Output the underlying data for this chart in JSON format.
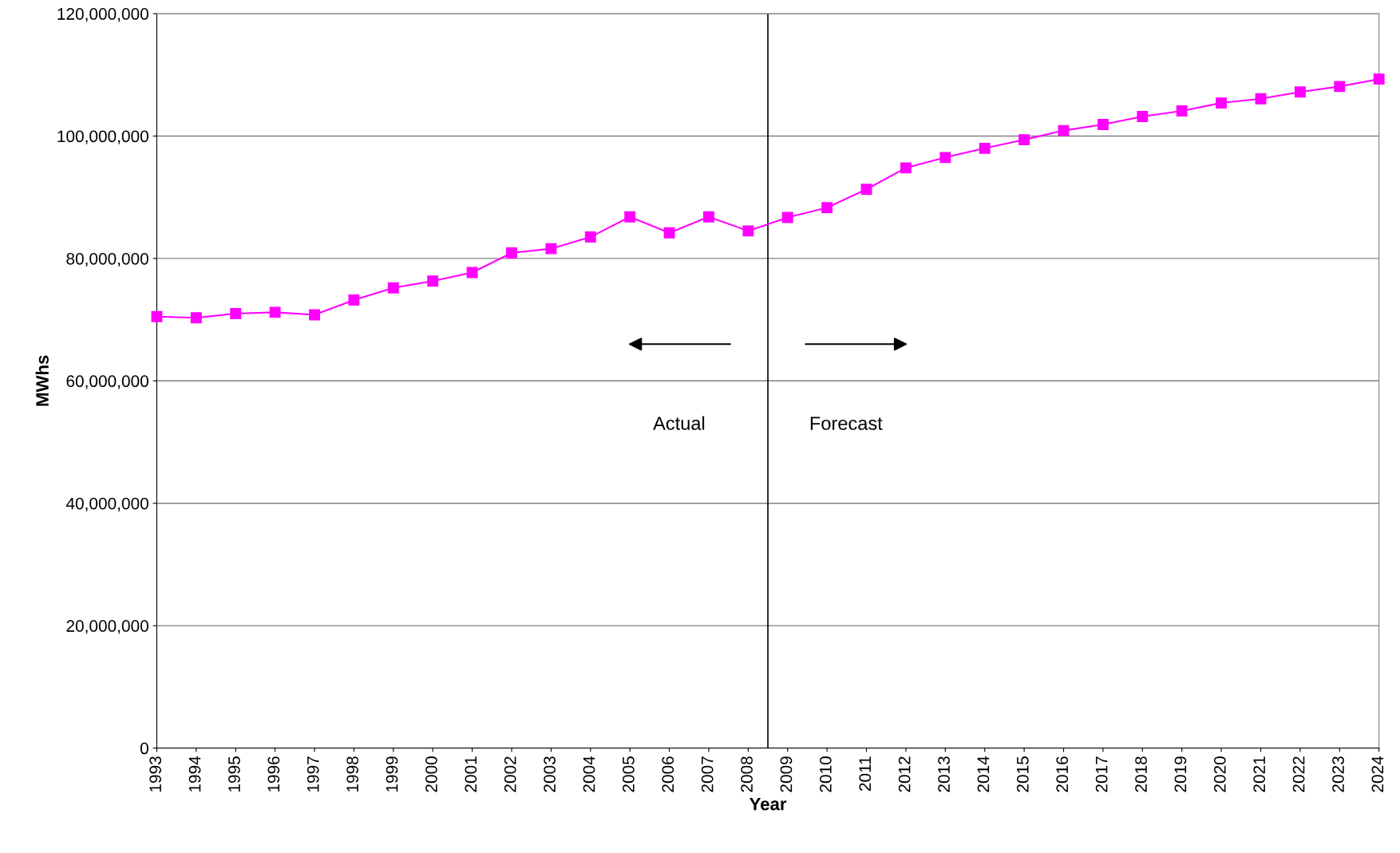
{
  "chart_data": {
    "type": "line",
    "xlabel": "Year",
    "ylabel": "MWhs",
    "x": [
      1993,
      1994,
      1995,
      1996,
      1997,
      1998,
      1999,
      2000,
      2001,
      2002,
      2003,
      2004,
      2005,
      2006,
      2007,
      2008,
      2009,
      2010,
      2011,
      2012,
      2013,
      2014,
      2015,
      2016,
      2017,
      2018,
      2019,
      2020,
      2021,
      2022,
      2023,
      2024
    ],
    "series": [
      {
        "color": "#ff00ff",
        "values": [
          70500000,
          70300000,
          71000000,
          71200000,
          70800000,
          73200000,
          75200000,
          76300000,
          77700000,
          80900000,
          81600000,
          83500000,
          86800000,
          84200000,
          86800000,
          84500000,
          86700000,
          88300000,
          91300000,
          94800000,
          96500000,
          98000000,
          99400000,
          100900000,
          101900000,
          103200000,
          104100000,
          105400000,
          106100000,
          107200000,
          108100000,
          109300000
        ]
      }
    ],
    "xlim": [
      1993,
      2024
    ],
    "xticks": [
      1993,
      1994,
      1995,
      1996,
      1997,
      1998,
      1999,
      2000,
      2001,
      2002,
      2003,
      2004,
      2005,
      2006,
      2007,
      2008,
      2009,
      2010,
      2011,
      2012,
      2013,
      2014,
      2015,
      2016,
      2017,
      2018,
      2019,
      2020,
      2021,
      2022,
      2023,
      2024
    ],
    "ylim": [
      0,
      120000000
    ],
    "yticks": [
      {
        "value": 0,
        "label": "0"
      },
      {
        "value": 20000000,
        "label": "20,000,000"
      },
      {
        "value": 40000000,
        "label": "40,000,000"
      },
      {
        "value": 60000000,
        "label": "60,000,000"
      },
      {
        "value": 80000000,
        "label": "80,000,000"
      },
      {
        "value": 100000000,
        "label": "100,000,000"
      },
      {
        "value": 120000000,
        "label": "120,000,000"
      }
    ],
    "ref_lines": [
      {
        "axis": "x",
        "value": 2008.5,
        "color": "#000000"
      }
    ],
    "annotations": [
      "Actual",
      "Forecast"
    ],
    "grid": "y",
    "marker": "square",
    "line_style": "solid",
    "legend": false
  }
}
